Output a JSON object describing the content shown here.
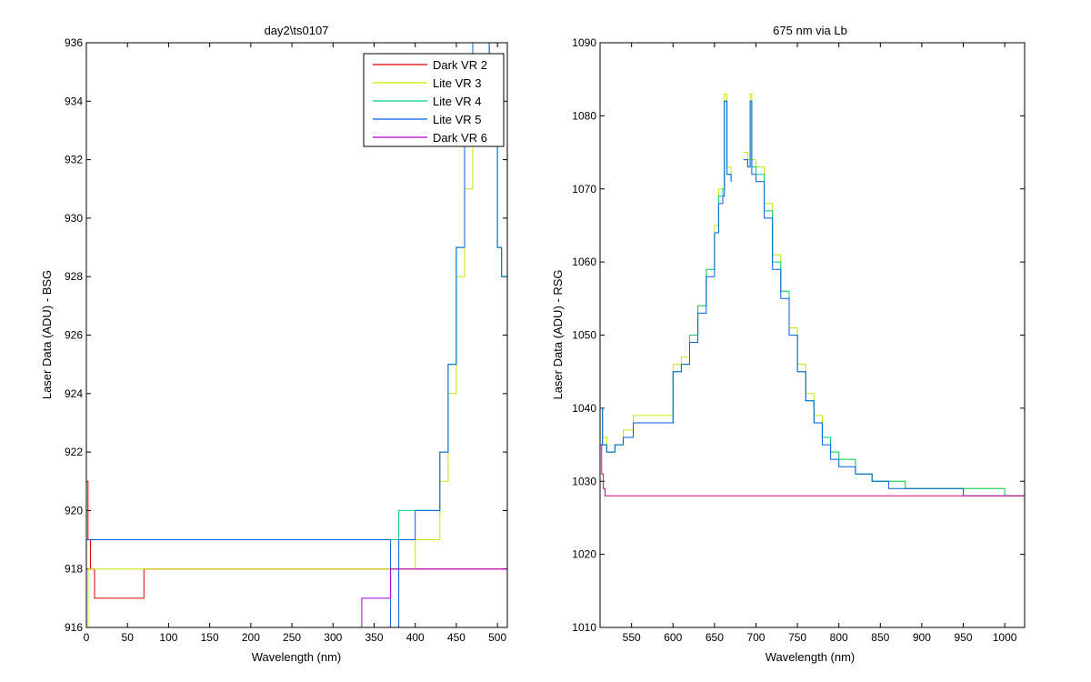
{
  "colors": {
    "dark_vr2": "#e00000",
    "lite_vr3": "#c8e600",
    "lite_vr4": "#00d07a",
    "lite_vr5": "#0060e0",
    "dark_vr6": "#b000d0",
    "dark_vr6_right": "#e0007a"
  },
  "chart_data": [
    {
      "type": "line",
      "title": "day2\\ts0107",
      "xlabel": "Wavelength (nm)",
      "ylabel": "Laser Data (ADU) - BSG",
      "xlim": [
        0,
        512
      ],
      "ylim": [
        916,
        936
      ],
      "xticks": [
        "0",
        "50",
        "100",
        "150",
        "200",
        "250",
        "300",
        "350",
        "400",
        "450",
        "500"
      ],
      "yticks": [
        "916",
        "918",
        "920",
        "922",
        "924",
        "926",
        "928",
        "930",
        "932",
        "934",
        "936"
      ],
      "legend_position": "top-right",
      "legend": [
        "Dark VR 2",
        "Lite VR 3",
        "Lite VR 4",
        "Lite VR 5",
        "Dark VR 6"
      ],
      "series": [
        {
          "name": "Dark VR 2",
          "note_levels": [
            917,
            918,
            919
          ],
          "x": [
            0,
            2,
            5,
            10,
            20,
            40,
            60,
            70,
            80,
            150,
            250,
            350,
            420,
            460,
            500,
            512
          ],
          "y": [
            921,
            919,
            918,
            917,
            917,
            917,
            917,
            918,
            918,
            918,
            918,
            918,
            918,
            918,
            918,
            918
          ]
        },
        {
          "name": "Lite VR 3",
          "x": [
            0,
            2,
            5,
            20,
            100,
            200,
            300,
            350,
            400,
            420,
            430,
            440,
            450,
            460,
            470,
            480,
            490,
            500,
            505,
            512
          ],
          "y": [
            916,
            918,
            918,
            918,
            918,
            918,
            918,
            918,
            919,
            919,
            921,
            924,
            928,
            931,
            936,
            936,
            933,
            929,
            928,
            925
          ]
        },
        {
          "name": "Lite VR 4",
          "x": [
            0,
            2,
            5,
            20,
            100,
            200,
            300,
            340,
            360,
            380,
            400,
            410,
            420,
            430,
            440,
            450,
            460,
            470,
            480,
            490,
            500,
            505,
            512
          ],
          "y": [
            919,
            919,
            919,
            919,
            919,
            919,
            919,
            919,
            919,
            920,
            920,
            920,
            920,
            922,
            925,
            929,
            933,
            936,
            936,
            933,
            929,
            928,
            924
          ]
        },
        {
          "name": "Lite VR 5",
          "x": [
            0,
            2,
            5,
            20,
            100,
            200,
            300,
            340,
            360,
            370,
            380,
            400,
            410,
            420,
            430,
            440,
            450,
            460,
            470,
            480,
            490,
            500,
            505,
            512
          ],
          "y": [
            919,
            919,
            919,
            919,
            919,
            919,
            919,
            919,
            919,
            916,
            919,
            920,
            920,
            920,
            922,
            925,
            929,
            933,
            936,
            936,
            933,
            929,
            928,
            924
          ]
        },
        {
          "name": "Dark VR 6",
          "x": [
            330,
            335,
            340,
            350,
            360,
            370,
            380,
            390,
            400,
            410,
            420,
            430,
            440,
            450,
            460,
            470,
            480,
            490,
            500,
            512
          ],
          "y": [
            916,
            917,
            917,
            917,
            917,
            918,
            918,
            918,
            918,
            918,
            918,
            918,
            918,
            918,
            918,
            918,
            918,
            918,
            918,
            918
          ]
        }
      ]
    },
    {
      "type": "line",
      "title": "675 nm via Lb",
      "xlabel": "Wavelength (nm)",
      "ylabel": "Laser Data (ADU) - RSG",
      "xlim": [
        512,
        1024
      ],
      "ylim": [
        1010,
        1090
      ],
      "xticks": [
        "550",
        "600",
        "650",
        "700",
        "750",
        "800",
        "850",
        "900",
        "950",
        "1000"
      ],
      "yticks": [
        "1010",
        "1020",
        "1030",
        "1040",
        "1050",
        "1060",
        "1070",
        "1080",
        "1090"
      ],
      "series": [
        {
          "name": "Lite VR 3",
          "x": [
            512,
            515,
            520,
            530,
            540,
            552,
            600,
            610,
            620,
            630,
            640,
            650,
            655,
            660,
            662,
            665,
            670,
            680,
            685,
            690,
            693,
            695,
            700,
            710,
            720,
            730,
            740,
            750,
            760,
            770,
            780,
            790,
            800,
            820,
            840,
            860,
            880,
            900,
            950,
            1000,
            1024
          ],
          "y": [
            1040,
            1036,
            1034,
            1035,
            1037,
            1039,
            1046,
            1047,
            1050,
            1054,
            1059,
            1065,
            1070,
            1070,
            1083,
            1073,
            1072,
            null,
            1075,
            1074,
            1083,
            1074,
            1073,
            1068,
            1061,
            1056,
            1051,
            1046,
            1042,
            1039,
            1036,
            1034,
            1033,
            1031,
            1030,
            1030,
            1029,
            1029,
            1029,
            1028,
            1027
          ]
        },
        {
          "name": "Lite VR 4",
          "x": [
            512,
            515,
            520,
            530,
            540,
            552,
            600,
            610,
            620,
            630,
            640,
            650,
            655,
            660,
            662,
            665,
            670,
            680,
            685,
            690,
            693,
            695,
            700,
            710,
            720,
            730,
            740,
            750,
            760,
            770,
            780,
            790,
            800,
            820,
            840,
            860,
            880,
            900,
            950,
            1000,
            1024
          ],
          "y": [
            1040,
            1035,
            1034,
            1035,
            1036,
            1038,
            1045,
            1046,
            1050,
            1054,
            1059,
            1064,
            1069,
            1070,
            1082,
            1072,
            1071,
            null,
            1074,
            1073,
            1082,
            1073,
            1072,
            1067,
            1060,
            1056,
            1050,
            1045,
            1041,
            1038,
            1036,
            1034,
            1033,
            1031,
            1030,
            1030,
            1029,
            1029,
            1029,
            1028,
            1028
          ]
        },
        {
          "name": "Lite VR 5",
          "x": [
            512,
            515,
            520,
            530,
            540,
            552,
            600,
            610,
            620,
            630,
            640,
            650,
            655,
            660,
            662,
            665,
            670,
            680,
            685,
            690,
            693,
            695,
            700,
            710,
            720,
            730,
            740,
            750,
            760,
            770,
            780,
            790,
            800,
            820,
            840,
            860,
            880,
            900,
            950,
            1000,
            1024
          ],
          "y": [
            1040,
            1035,
            1034,
            1035,
            1036,
            1038,
            1045,
            1046,
            1049,
            1053,
            1058,
            1064,
            1068,
            1069,
            1082,
            1072,
            1071,
            null,
            1074,
            1073,
            1082,
            1072,
            1071,
            1066,
            1059,
            1055,
            1050,
            1045,
            1041,
            1038,
            1035,
            1033,
            1032,
            1031,
            1030,
            1029,
            1029,
            1029,
            1028,
            1028,
            1028
          ]
        },
        {
          "name": "Dark VR 6",
          "x": [
            512,
            514,
            516,
            518,
            520,
            600,
            700,
            800,
            900,
            1000,
            1024
          ],
          "y": [
            1035,
            1031,
            1029,
            1028,
            1028,
            1028,
            1028,
            1028,
            1028,
            1028,
            1028
          ]
        }
      ]
    }
  ]
}
